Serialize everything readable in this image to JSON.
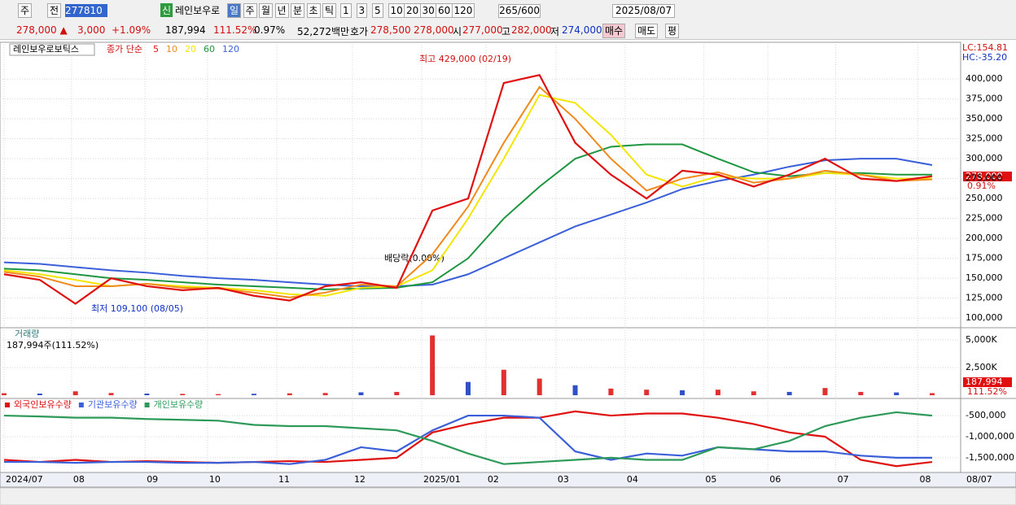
{
  "toolbar": {
    "period_main": "주",
    "mode": "전",
    "code": "277810",
    "badge": "신",
    "name": "레인보우로",
    "periods": [
      "일",
      "주",
      "월",
      "년",
      "분",
      "초",
      "틱"
    ],
    "intervals": [
      "1",
      "3",
      "5",
      "10",
      "20",
      "30",
      "60",
      "120"
    ],
    "count": "265",
    "count_max": "/600",
    "date": "2025/08/07"
  },
  "quote": {
    "price": "278,000 ▲",
    "change": "3,000",
    "change_pct": "+1.09%",
    "volume": "187,994",
    "volume_ratio": "111.52%",
    "turnover": "0.97%",
    "amount": "52,272백만",
    "ask_label": "호가",
    "ask": "278,500",
    "bid": "278,000",
    "open_label": "시",
    "open": "277,000",
    "high_label": "고",
    "high": "282,000",
    "low_label": "저",
    "low": "274,000",
    "buy": "매수",
    "sell": "매도",
    "avg": "평"
  },
  "chart_data": [
    {
      "type": "line",
      "title": "레인보우로보틱스",
      "legend_label": "종가 단순",
      "lc": "LC:154.81",
      "hc": "HC:-35.20",
      "current_label": "278,000",
      "current_pct": "0.91%",
      "annotations": [
        "최고 429,000 (02/19)",
        "최저 109,100 (08/05)",
        "배당락(0.00%)"
      ],
      "x": [
        0,
        1,
        2,
        3,
        4,
        5,
        6,
        7,
        8,
        9,
        10,
        11,
        12,
        13,
        14,
        15,
        16,
        17,
        18,
        19,
        20,
        21,
        22,
        23,
        24,
        25,
        26
      ],
      "xlim": [
        0,
        26
      ],
      "xticks": [
        {
          "value": 0,
          "label": "2024/07"
        },
        {
          "value": 1.89,
          "label": "08"
        },
        {
          "value": 3.95,
          "label": "09"
        },
        {
          "value": 5.7,
          "label": "10"
        },
        {
          "value": 7.64,
          "label": "11"
        },
        {
          "value": 9.76,
          "label": "12"
        },
        {
          "value": 11.7,
          "label": "2025/01"
        },
        {
          "value": 13.5,
          "label": "02"
        },
        {
          "value": 15.46,
          "label": "03"
        },
        {
          "value": 17.4,
          "label": "04"
        },
        {
          "value": 19.6,
          "label": "05"
        },
        {
          "value": 21.4,
          "label": "06"
        },
        {
          "value": 23.3,
          "label": "07"
        },
        {
          "value": 25.6,
          "label": "08"
        }
      ],
      "cursor_label": "08/07",
      "ylim": [
        91000,
        443000
      ],
      "yticks": [
        {
          "value": 400000,
          "label": "400,000"
        },
        {
          "value": 375000,
          "label": "375,000"
        },
        {
          "value": 350000,
          "label": "350,000"
        },
        {
          "value": 325000,
          "label": "325,000"
        },
        {
          "value": 300000,
          "label": "300,000"
        },
        {
          "value": 275000,
          "label": "275,000"
        },
        {
          "value": 250000,
          "label": "250,000"
        },
        {
          "value": 225000,
          "label": "225,000"
        },
        {
          "value": 200000,
          "label": "200,000"
        },
        {
          "value": 175000,
          "label": "175,000"
        },
        {
          "value": 150000,
          "label": "150,000"
        },
        {
          "value": 125000,
          "label": "125,000"
        },
        {
          "value": 100000,
          "label": "100,000"
        }
      ],
      "grid": true,
      "series": [
        {
          "name": "120",
          "color": "#3a5fd9",
          "values": [
            170000,
            168000,
            164000,
            160000,
            157000,
            153000,
            150000,
            148000,
            145000,
            142000,
            140000,
            140000,
            142000,
            155000,
            175000,
            195000,
            215000,
            230000,
            245000,
            262000,
            272000,
            280000,
            290000,
            298000,
            300000,
            300000,
            292000
          ]
        },
        {
          "name": "60",
          "color": "#1e9640",
          "values": [
            162000,
            160000,
            155000,
            150000,
            148000,
            145000,
            142000,
            140000,
            138000,
            136000,
            137000,
            138000,
            145000,
            175000,
            225000,
            265000,
            300000,
            315000,
            318000,
            318000,
            300000,
            283000,
            278000,
            282000,
            282000,
            280000,
            280000
          ]
        },
        {
          "name": "20",
          "color": "#f2e600",
          "values": [
            160000,
            155000,
            148000,
            140000,
            143000,
            140000,
            138000,
            135000,
            130000,
            128000,
            138000,
            140000,
            160000,
            225000,
            300000,
            380000,
            370000,
            330000,
            280000,
            265000,
            278000,
            275000,
            275000,
            282000,
            280000,
            275000,
            275000
          ]
        },
        {
          "name": "10",
          "color": "#f08a1c",
          "values": [
            158000,
            152000,
            140000,
            140000,
            143000,
            138000,
            137000,
            132000,
            126000,
            132000,
            142000,
            140000,
            180000,
            240000,
            320000,
            390000,
            350000,
            300000,
            260000,
            275000,
            283000,
            270000,
            275000,
            285000,
            280000,
            272000,
            274000
          ]
        },
        {
          "name": "5",
          "color": "#e01010",
          "values": [
            155000,
            148000,
            118000,
            150000,
            140000,
            135000,
            138000,
            128000,
            122000,
            140000,
            145000,
            138000,
            235000,
            250000,
            395000,
            405000,
            320000,
            280000,
            250000,
            285000,
            280000,
            265000,
            280000,
            300000,
            275000,
            272000,
            278000
          ]
        }
      ]
    },
    {
      "type": "bar",
      "title": "거래량",
      "subtitle": "187,994주(111.52%)",
      "current_label": "187,994",
      "current_pct": "111.52%",
      "color": "#e03030",
      "color2": "#3050c8",
      "ylim": [
        0,
        5950000
      ],
      "yticks": [
        {
          "value": 5000000,
          "label": "5,000K"
        },
        {
          "value": 2500000,
          "label": "2,500K"
        }
      ],
      "values": [
        180000,
        150000,
        350000,
        200000,
        150000,
        120000,
        100000,
        130000,
        170000,
        200000,
        260000,
        300000,
        5400000,
        1200000,
        2300000,
        1500000,
        900000,
        600000,
        500000,
        450000,
        500000,
        350000,
        300000,
        650000,
        300000,
        250000,
        187994
      ]
    },
    {
      "type": "line",
      "ylim": [
        -1830000,
        -190000
      ],
      "yticks": [
        {
          "value": -500000,
          "label": "-500,000"
        },
        {
          "value": -1000000,
          "label": "-1,000,000"
        },
        {
          "value": -1500000,
          "label": "-1,500,000"
        }
      ],
      "series": [
        {
          "name": "외국인보유수량",
          "color": "#e01010",
          "values": [
            -1550000,
            -1600000,
            -1550000,
            -1600000,
            -1580000,
            -1600000,
            -1620000,
            -1600000,
            -1580000,
            -1600000,
            -1550000,
            -1500000,
            -900000,
            -700000,
            -550000,
            -550000,
            -400000,
            -500000,
            -450000,
            -450000,
            -550000,
            -700000,
            -900000,
            -1000000,
            -1550000,
            -1700000,
            -1600000
          ]
        },
        {
          "name": "기관보유수량",
          "color": "#3a5fd9",
          "values": [
            -1600000,
            -1600000,
            -1620000,
            -1600000,
            -1600000,
            -1620000,
            -1620000,
            -1600000,
            -1650000,
            -1550000,
            -1250000,
            -1350000,
            -850000,
            -500000,
            -500000,
            -550000,
            -1350000,
            -1550000,
            -1400000,
            -1450000,
            -1250000,
            -1300000,
            -1350000,
            -1350000,
            -1450000,
            -1500000,
            -1500000
          ]
        },
        {
          "name": "개인보유수량",
          "color": "#2e9a5a",
          "values": [
            -500000,
            -520000,
            -550000,
            -550000,
            -580000,
            -600000,
            -620000,
            -720000,
            -750000,
            -750000,
            -800000,
            -850000,
            -1100000,
            -1400000,
            -1650000,
            -1600000,
            -1550000,
            -1500000,
            -1550000,
            -1550000,
            -1250000,
            -1300000,
            -1100000,
            -750000,
            -550000,
            -420000,
            -500000
          ]
        }
      ]
    }
  ]
}
